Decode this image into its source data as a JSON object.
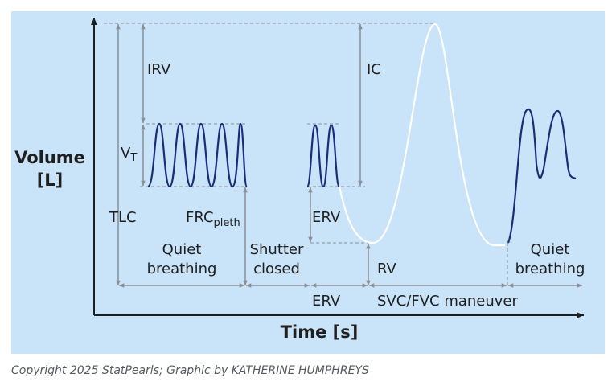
{
  "colors": {
    "background": "#c9e3f8",
    "axis": "#1f1f1f",
    "guide": "#8a8f96",
    "breathing_trace": "#1a2d7a",
    "maneuver_trace": "#ffffff"
  },
  "axes": {
    "y_label_line1": "Volume",
    "y_label_line2": "[L]",
    "x_label": "Time [s]"
  },
  "labels": {
    "irv": "IRV",
    "ic": "IC",
    "vt_main": "V",
    "vt_sub": "T",
    "tlc": "TLC",
    "frc_main": "FRC",
    "frc_sub": "pleth",
    "erv_upper": "ERV",
    "rv": "RV",
    "quiet_breathing_1_line1": "Quiet",
    "quiet_breathing_1_line2": "breathing",
    "shutter_line1": "Shutter",
    "shutter_line2": "closed",
    "quiet_breathing_2_line1": "Quiet",
    "quiet_breathing_2_line2": "breathing",
    "erv_lower": "ERV",
    "maneuver": "SVC/FVC maneuver"
  },
  "copyright": "Copyright 2025 StatPearls; Graphic by KATHERINE HUMPHREYS"
}
